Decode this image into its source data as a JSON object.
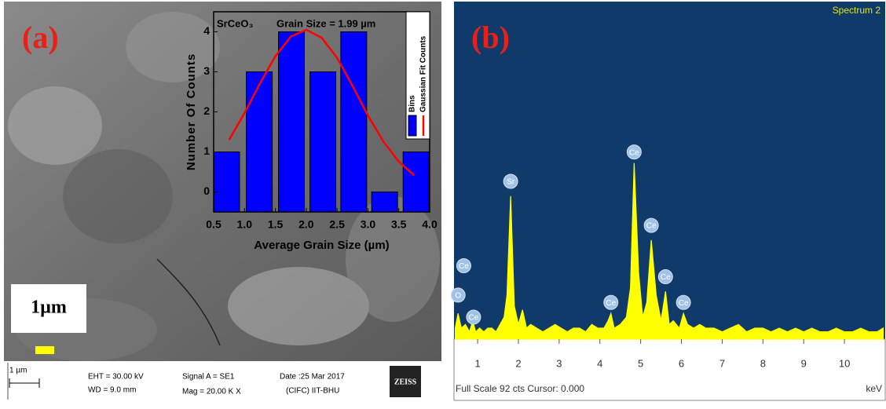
{
  "panels": [
    {
      "label": "(a)",
      "scale_label": "1µm",
      "info": [
        "1 µm",
        "EHT = 30.00 kV",
        "WD =  9.0 mm",
        "Signal A = SE1",
        "Mag =  20.00 K X",
        "Date :25 Mar 2017",
        "(CIFC) IIT-BHU",
        "ZEISS"
      ]
    },
    {
      "label": "(b)"
    }
  ],
  "chart_data": [
    {
      "type": "bar",
      "title": "SrCeO₃",
      "annotation": "Grain Size = 1.99 µm",
      "xlabel": "Average Grain Size (µm)",
      "ylabel": "Number Of Counts",
      "xlim": [
        0.5,
        4.0
      ],
      "xticks": [
        0.5,
        {
          "value": 1,
          "label": "1.0"
        },
        1.5,
        {
          "value": 2,
          "label": "2.0"
        },
        2.5,
        {
          "value": 3,
          "label": "3.0"
        },
        3.5,
        {
          "value": 4,
          "label": "4.0"
        }
      ],
      "ylim": [
        -0.5,
        4.5
      ],
      "yticks": [
        0,
        1,
        2,
        3,
        4
      ],
      "series": [
        {
          "name": "Bins",
          "type": "bar",
          "color": "#0000ff",
          "x": [
            0.71,
            1.24,
            1.76,
            2.27,
            2.77,
            3.27,
            3.78
          ],
          "values": [
            1,
            3,
            4,
            3,
            4,
            0,
            1
          ]
        },
        {
          "name": "Gaussian Fit Counts",
          "type": "line",
          "color": "#ff0000",
          "x": [
            0.75,
            1.0,
            1.25,
            1.5,
            1.75,
            2.0,
            2.25,
            2.5,
            2.75,
            3.0,
            3.25,
            3.5,
            3.75
          ],
          "values": [
            1.3,
            1.97,
            2.71,
            3.39,
            3.88,
            4.05,
            3.85,
            3.35,
            2.65,
            1.91,
            1.26,
            0.76,
            0.41
          ]
        }
      ]
    },
    {
      "type": "area",
      "title": "Spectrum 2",
      "xlabel": "keV",
      "color": "#ffff00",
      "footer": "Full Scale 92 cts Cursor: 0.000",
      "xlim": [
        0.42,
        11.0
      ],
      "ylim": [
        0,
        92
      ],
      "xticks": [
        1,
        2,
        3,
        4,
        5,
        6,
        7,
        8,
        9,
        10
      ],
      "x": [
        0.45,
        0.52,
        0.6,
        0.7,
        0.8,
        0.88,
        0.95,
        1.05,
        1.15,
        1.25,
        1.35,
        1.45,
        1.55,
        1.65,
        1.72,
        1.81,
        1.9,
        2.0,
        2.1,
        2.2,
        2.3,
        2.45,
        2.6,
        2.75,
        2.9,
        3.05,
        3.2,
        3.35,
        3.5,
        3.65,
        3.8,
        3.95,
        4.1,
        4.2,
        4.27,
        4.35,
        4.5,
        4.65,
        4.75,
        4.84,
        4.95,
        5.05,
        5.15,
        5.26,
        5.38,
        5.5,
        5.61,
        5.7,
        5.8,
        5.95,
        6.05,
        6.15,
        6.3,
        6.45,
        6.6,
        6.8,
        7.0,
        7.2,
        7.4,
        7.6,
        7.8,
        8.0,
        8.2,
        8.4,
        8.6,
        8.8,
        9.0,
        9.2,
        9.4,
        9.6,
        9.8,
        10.0,
        10.2,
        10.4,
        10.6,
        10.8,
        10.95
      ],
      "values": [
        3,
        7,
        3,
        4,
        2,
        5,
        2,
        3,
        2,
        3,
        3,
        2,
        4,
        6,
        12,
        39,
        9,
        4,
        8,
        3,
        4,
        3,
        2,
        3,
        4,
        3,
        2,
        3,
        3,
        2,
        4,
        3,
        3,
        5,
        7,
        3,
        4,
        6,
        14,
        48,
        18,
        6,
        10,
        27,
        12,
        5,
        13,
        4,
        5,
        3,
        7,
        4,
        3,
        4,
        3,
        3,
        2,
        3,
        4,
        2,
        3,
        3,
        2,
        3,
        2,
        3,
        2,
        3,
        2,
        2,
        3,
        2,
        2,
        3,
        2,
        2,
        3
      ],
      "annotations": [
        {
          "text": "O",
          "x": 0.52,
          "y": 12
        },
        {
          "text": "Ce",
          "x": 0.66,
          "y": 20
        },
        {
          "text": "Ce",
          "x": 0.9,
          "y": 6
        },
        {
          "text": "Sr",
          "x": 1.81,
          "y": 43
        },
        {
          "text": "Ce",
          "x": 4.27,
          "y": 10
        },
        {
          "text": "Ce",
          "x": 4.84,
          "y": 51
        },
        {
          "text": "Ce",
          "x": 5.26,
          "y": 31
        },
        {
          "text": "Ce",
          "x": 5.61,
          "y": 17
        },
        {
          "text": "Ce",
          "x": 6.05,
          "y": 10
        }
      ]
    }
  ]
}
